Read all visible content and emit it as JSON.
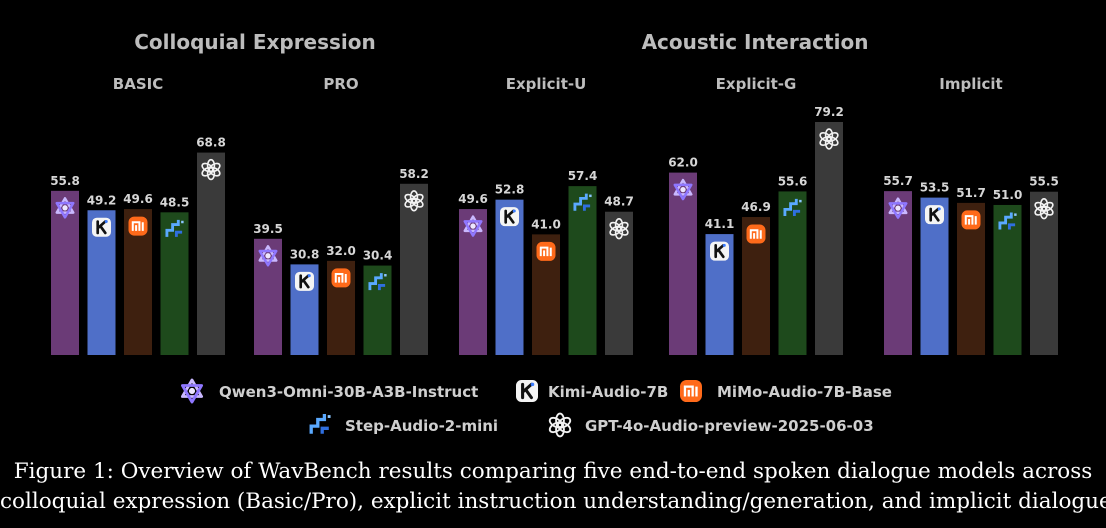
{
  "chart_data": {
    "type": "bar",
    "groups": [
      {
        "title": "Colloquial Expression",
        "panels": [
          "BASIC",
          "PRO"
        ]
      },
      {
        "title": "Acoustic Interaction",
        "panels": [
          "Explicit-U",
          "Explicit-G",
          "Implicit"
        ]
      }
    ],
    "categories": [
      "BASIC",
      "PRO",
      "Explicit-U",
      "Explicit-G",
      "Implicit"
    ],
    "series": [
      {
        "name": "Qwen3-Omni-30B-A3B-Instruct",
        "color": "#6b3b77",
        "icon": "qwen-logo-icon",
        "values": [
          55.8,
          39.5,
          49.6,
          62.0,
          55.7
        ],
        "labels": [
          "55.8",
          "39.5",
          "49.6",
          "62.0",
          "55.7"
        ]
      },
      {
        "name": "Kimi-Audio-7B",
        "color": "#4f6fc8",
        "icon": "kimi-logo-icon",
        "values": [
          49.2,
          30.8,
          52.8,
          41.1,
          53.5
        ],
        "labels": [
          "49.2",
          "30.8",
          "52.8",
          "41.1",
          "53.5"
        ]
      },
      {
        "name": "MiMo-Audio-7B-Base",
        "color": "#3e200f",
        "icon": "mimo-logo-icon",
        "values": [
          49.6,
          32.0,
          41.0,
          46.9,
          51.7
        ],
        "labels": [
          "49.6",
          "32.0",
          "41.0",
          "46.9",
          "51.7"
        ]
      },
      {
        "name": "Step-Audio-2-mini",
        "color": "#1e4a1c",
        "icon": "step-logo-icon",
        "values": [
          48.5,
          30.4,
          57.4,
          55.6,
          51.0
        ],
        "labels": [
          "48.5",
          "30.4",
          "57.4",
          "55.6",
          "51.0"
        ]
      },
      {
        "name": "GPT-4o-Audio-preview-2025-06-03",
        "color": "#3a3a3a",
        "icon": "openai-logo-icon",
        "values": [
          68.8,
          58.2,
          48.7,
          79.2,
          55.5
        ],
        "labels": [
          "68.8",
          "58.2",
          "48.7",
          "79.2",
          "55.5"
        ]
      }
    ]
  },
  "caption": {
    "line1": "Figure 1: Overview of WavBench results comparing five end-to-end spoken dialogue models across",
    "line2": "colloquial expression (Basic/Pro), explicit instruction understanding/generation, and implicit dialogue"
  }
}
